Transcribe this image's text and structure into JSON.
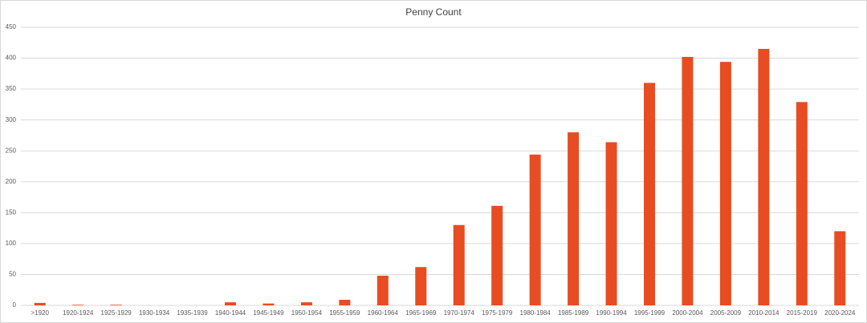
{
  "chart_data": {
    "type": "bar",
    "title": "Penny Count",
    "categories": [
      ">1920",
      "1920-1924",
      "1925-1929",
      "1930-1934",
      "1935-1939",
      "1940-1944",
      "1945-1949",
      "1950-1954",
      "1955-1959",
      "1960-1964",
      "1965-1969",
      "1970-1974",
      "1975-1979",
      "1980-1984",
      "1985-1989",
      "1990-1994",
      "1995-1999",
      "2000-2004",
      "2005-2009",
      "2010-2014",
      "2015-2019",
      "2020-2024"
    ],
    "values": [
      4,
      1,
      1,
      0,
      0,
      5,
      3,
      5,
      9,
      48,
      62,
      130,
      161,
      244,
      280,
      264,
      360,
      402,
      394,
      415,
      329,
      120
    ],
    "color": "#e84c22",
    "ylim": [
      0,
      450
    ],
    "yticks": [
      0,
      50,
      100,
      150,
      200,
      250,
      300,
      350,
      400,
      450
    ],
    "grid": true
  }
}
